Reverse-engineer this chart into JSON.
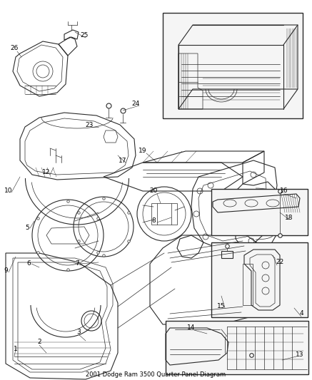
{
  "title": "2001 Dodge Ram 3500 Quarter Panel Diagram",
  "bg_color": "#ffffff",
  "line_color": "#2a2a2a",
  "text_color": "#000000",
  "fig_width": 4.37,
  "fig_height": 5.33,
  "dpi": 100,
  "label_fontsize": 6.5,
  "title_fontsize": 6.0
}
